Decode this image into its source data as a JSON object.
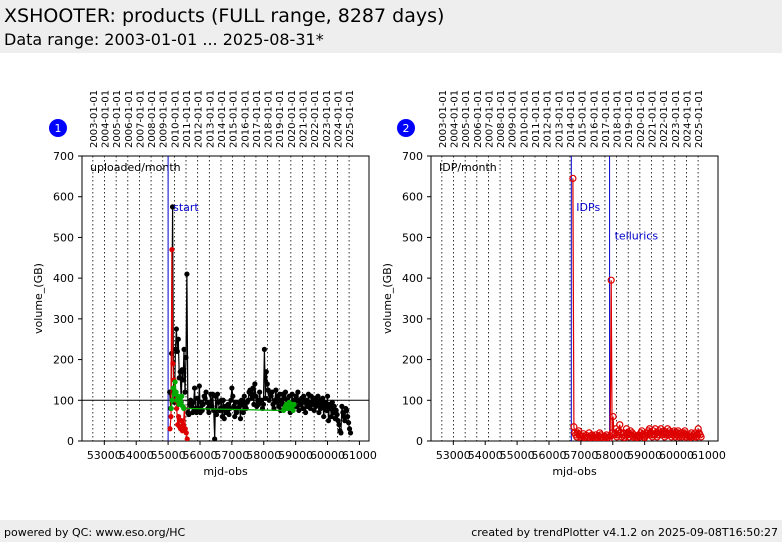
{
  "header": {
    "title": "XSHOOTER: products (FULL range, 8287 days)",
    "subtitle": "Data range: 2003-01-01 ... 2025-08-31*"
  },
  "footer": {
    "left": "powered by QC: www.eso.org/HC",
    "right": "created by trendPlotter v4.1.2 on 2025-09-08T16:50:27"
  },
  "colors": {
    "black": "#000000",
    "red": "#dd0000",
    "green": "#00aa00",
    "blue": "#0000cc",
    "badge": "#0000ff"
  },
  "chart_data": [
    {
      "type": "scatter",
      "badge": "1",
      "panel_label": "uploaded/month",
      "xlabel": "mjd-obs",
      "ylabel": "volume_(GB)",
      "xlim": [
        52300,
        61300
      ],
      "ylim": [
        0,
        700
      ],
      "x_ticks": [
        53000,
        54000,
        55000,
        56000,
        57000,
        58000,
        59000,
        60000,
        61000
      ],
      "y_ticks": [
        0,
        100,
        200,
        300,
        400,
        500,
        600,
        700
      ],
      "date_ticks": [
        "2003-01-01",
        "2004-01-01",
        "2005-01-01",
        "2006-01-01",
        "2007-01-01",
        "2008-01-01",
        "2009-01-01",
        "2010-01-01",
        "2011-01-01",
        "2012-01-01",
        "2013-01-01",
        "2014-01-01",
        "2015-01-01",
        "2016-01-01",
        "2017-01-01",
        "2018-01-01",
        "2019-01-01",
        "2020-01-01",
        "2021-01-01",
        "2022-01-01",
        "2023-01-01",
        "2024-01-01",
        "2025-01-01"
      ],
      "date_mjd": [
        52640,
        53005,
        53371,
        53736,
        54101,
        54466,
        54832,
        55197,
        55562,
        55927,
        56293,
        56658,
        57023,
        57388,
        57754,
        58119,
        58484,
        58849,
        59215,
        59580,
        59945,
        60310,
        60676
      ],
      "hlines": [
        {
          "y": 100
        }
      ],
      "vlines": [
        {
          "x": 55000,
          "label": "start"
        }
      ],
      "series": [
        {
          "color": "black",
          "x": [
            55050,
            55080,
            55110,
            55140,
            55170,
            55200,
            55230,
            55260,
            55290,
            55320,
            55350,
            55380,
            55410,
            55440,
            55470,
            55500,
            55530,
            55560,
            55590,
            55620,
            55650,
            55680,
            55710,
            55740,
            55770,
            55800,
            55830,
            55860,
            55890,
            55920,
            55950,
            55980,
            56010,
            56040,
            56070,
            56100,
            56130,
            56160,
            56190,
            56220,
            56250,
            56280,
            56310,
            56340,
            56370,
            56400,
            56430,
            56460,
            56490,
            56520,
            56550,
            56580,
            56610,
            56640,
            56670,
            56700,
            56730,
            56760,
            56790,
            56820,
            56850,
            56880,
            56910,
            56940,
            56970,
            57000,
            57030,
            57060,
            57090,
            57120,
            57150,
            57180,
            57210,
            57240,
            57270,
            57300,
            57330,
            57360,
            57390,
            57420,
            57450,
            57480,
            57510,
            57540,
            57570,
            57600,
            57630,
            57660,
            57690,
            57720,
            57750,
            57780,
            57810,
            57840,
            57870,
            57900,
            57930,
            57960,
            57990,
            58020,
            58050,
            58080,
            58110,
            58140,
            58170,
            58200,
            58230,
            58260,
            58290,
            58320,
            58350,
            58380,
            58410,
            58440,
            58470,
            58500,
            58530,
            58560,
            58590,
            58620,
            58650,
            58680,
            58710,
            58740,
            58770,
            58800,
            58830,
            58860,
            58890,
            58920,
            58950,
            58980,
            59010,
            59040,
            59070,
            59100,
            59130,
            59160,
            59190,
            59220,
            59250,
            59280,
            59310,
            59340,
            59370,
            59400,
            59430,
            59460,
            59490,
            59520,
            59550,
            59580,
            59610,
            59640,
            59670,
            59700,
            59730,
            59760,
            59790,
            59820,
            59850,
            59880,
            59910,
            59940,
            59970,
            60000,
            60030,
            60060,
            60090,
            60120,
            60150,
            60180,
            60210,
            60240,
            60270,
            60300,
            60330,
            60360,
            60390,
            60420,
            60450,
            60480,
            60510,
            60540,
            60570,
            60600,
            60630,
            60660,
            60690,
            60720
          ],
          "y": [
            120,
            80,
            215,
            575,
            120,
            95,
            225,
            275,
            220,
            250,
            155,
            170,
            95,
            175,
            150,
            225,
            120,
            205,
            410,
            70,
            65,
            90,
            100,
            85,
            70,
            95,
            130,
            80,
            70,
            105,
            80,
            135,
            70,
            95,
            75,
            90,
            110,
            105,
            120,
            95,
            80,
            70,
            90,
            115,
            85,
            115,
            75,
            5,
            110,
            65,
            115,
            95,
            75,
            80,
            100,
            60,
            100,
            55,
            85,
            70,
            80,
            90,
            65,
            80,
            100,
            130,
            110,
            85,
            60,
            95,
            70,
            80,
            95,
            85,
            55,
            100,
            90,
            70,
            110,
            85,
            80,
            95,
            100,
            120,
            125,
            115,
            105,
            130,
            90,
            140,
            110,
            85,
            100,
            90,
            120,
            95,
            100,
            80,
            90,
            225,
            105,
            170,
            140,
            125,
            100,
            115,
            110,
            120,
            90,
            80,
            100,
            125,
            95,
            110,
            85,
            115,
            75,
            100,
            115,
            90,
            105,
            120,
            85,
            100,
            95,
            110,
            70,
            90,
            115,
            80,
            100,
            95,
            110,
            85,
            120,
            75,
            100,
            90,
            105,
            80,
            110,
            95,
            70,
            100,
            85,
            115,
            95,
            80,
            110,
            90,
            100,
            75,
            105,
            85,
            95,
            110,
            70,
            100,
            80,
            90,
            105,
            60,
            95,
            85,
            75,
            110,
            50,
            90,
            80,
            60,
            95,
            70,
            85,
            55,
            75,
            65,
            50,
            40,
            25,
            20,
            85,
            70,
            60,
            50,
            80,
            75,
            60,
            45,
            30,
            20
          ]
        },
        {
          "color": "red",
          "x": [
            55060,
            55090,
            55120,
            55150,
            55180,
            55210,
            55240,
            55270,
            55300,
            55330,
            55360,
            55390,
            55420,
            55450,
            55480,
            55510,
            55540,
            55570,
            55600
          ],
          "y": [
            30,
            60,
            470,
            190,
            150,
            120,
            100,
            80,
            40,
            60,
            35,
            30,
            50,
            25,
            40,
            80,
            30,
            20,
            5
          ]
        },
        {
          "color": "green",
          "x": [
            55100,
            55130,
            55160,
            55190,
            55220,
            55250,
            55280,
            55310,
            55340,
            55370,
            55400,
            55430,
            55460,
            55490,
            58620,
            58650,
            58680,
            58710,
            58740,
            58770,
            58800,
            58830,
            58860,
            58890,
            58920,
            58950
          ],
          "y": [
            80,
            100,
            130,
            115,
            145,
            120,
            100,
            110,
            90,
            100,
            95,
            110,
            85,
            80,
            75,
            80,
            85,
            90,
            80,
            85,
            95,
            80,
            90,
            85,
            75,
            90
          ]
        }
      ]
    },
    {
      "type": "scatter",
      "badge": "2",
      "panel_label": "IDP/month",
      "xlabel": "mjd-obs",
      "ylabel": "volume_(GB)",
      "xlim": [
        52300,
        61300
      ],
      "ylim": [
        0,
        700
      ],
      "x_ticks": [
        53000,
        54000,
        55000,
        56000,
        57000,
        58000,
        59000,
        60000,
        61000
      ],
      "y_ticks": [
        0,
        100,
        200,
        300,
        400,
        500,
        600,
        700
      ],
      "date_ticks": [
        "2003-01-01",
        "2004-01-01",
        "2005-01-01",
        "2006-01-01",
        "2007-01-01",
        "2008-01-01",
        "2009-01-01",
        "2010-01-01",
        "2011-01-01",
        "2012-01-01",
        "2013-01-01",
        "2014-01-01",
        "2015-01-01",
        "2016-01-01",
        "2017-01-01",
        "2018-01-01",
        "2019-01-01",
        "2020-01-01",
        "2021-01-01",
        "2022-01-01",
        "2023-01-01",
        "2024-01-01",
        "2025-01-01"
      ],
      "date_mjd": [
        52640,
        53005,
        53371,
        53736,
        54101,
        54466,
        54832,
        55197,
        55562,
        55927,
        56293,
        56658,
        57023,
        57388,
        57754,
        58119,
        58484,
        58849,
        59215,
        59580,
        59945,
        60310,
        60676
      ],
      "hlines": [],
      "vlines": [
        {
          "x": 56700,
          "label": "IDPs"
        },
        {
          "x": 57900,
          "label": "tellurics"
        }
      ],
      "series": [
        {
          "color": "red",
          "open": true,
          "x": [
            56750,
            56780,
            56810,
            56840,
            56870,
            56900,
            56930,
            56960,
            56990,
            57020,
            57050,
            57080,
            57110,
            57140,
            57170,
            57200,
            57230,
            57260,
            57290,
            57320,
            57350,
            57380,
            57410,
            57440,
            57470,
            57500,
            57530,
            57560,
            57590,
            57620,
            57650,
            57680,
            57710,
            57740,
            57770,
            57800,
            57830,
            57860,
            57890,
            57920,
            57950,
            57980,
            58010,
            58040,
            58070,
            58100,
            58130,
            58160,
            58190,
            58220,
            58250,
            58280,
            58310,
            58340,
            58370,
            58400,
            58430,
            58460,
            58490,
            58520,
            58550,
            58580,
            58610,
            58640,
            58670,
            58700,
            58730,
            58760,
            58790,
            58820,
            58850,
            58880,
            58910,
            58940,
            58970,
            59000,
            59030,
            59060,
            59090,
            59120,
            59150,
            59180,
            59210,
            59240,
            59270,
            59300,
            59330,
            59360,
            59390,
            59420,
            59450,
            59480,
            59510,
            59540,
            59570,
            59600,
            59630,
            59660,
            59690,
            59720,
            59750,
            59780,
            59810,
            59840,
            59870,
            59900,
            59930,
            59960,
            59990,
            60020,
            60050,
            60080,
            60110,
            60140,
            60170,
            60200,
            60230,
            60260,
            60290,
            60320,
            60350,
            60380,
            60410,
            60440,
            60470,
            60500,
            60530,
            60560,
            60590,
            60620,
            60650,
            60680,
            60710,
            60740,
            60770
          ],
          "y": [
            645,
            35,
            20,
            15,
            10,
            20,
            25,
            15,
            10,
            5,
            12,
            18,
            8,
            10,
            14,
            6,
            10,
            20,
            8,
            12,
            15,
            10,
            5,
            8,
            15,
            10,
            8,
            12,
            20,
            15,
            10,
            5,
            8,
            12,
            10,
            15,
            8,
            10,
            6,
            12,
            395,
            20,
            60,
            15,
            20,
            30,
            10,
            15,
            25,
            40,
            20,
            10,
            15,
            20,
            8,
            12,
            30,
            15,
            20,
            10,
            25,
            15,
            20,
            10,
            15,
            5,
            10,
            8,
            12,
            15,
            10,
            20,
            25,
            15,
            10,
            8,
            12,
            20,
            15,
            25,
            30,
            20,
            15,
            10,
            25,
            15,
            30,
            20,
            10,
            15,
            25,
            20,
            30,
            15,
            20,
            25,
            10,
            15,
            20,
            30,
            15,
            25,
            20,
            10,
            15,
            20,
            25,
            10,
            15,
            20,
            25,
            10,
            15,
            20,
            10,
            15,
            20,
            25,
            10,
            15,
            5,
            12,
            10,
            15,
            20,
            10,
            5,
            15,
            20,
            10,
            15,
            30,
            20,
            15,
            10
          ]
        }
      ]
    }
  ]
}
